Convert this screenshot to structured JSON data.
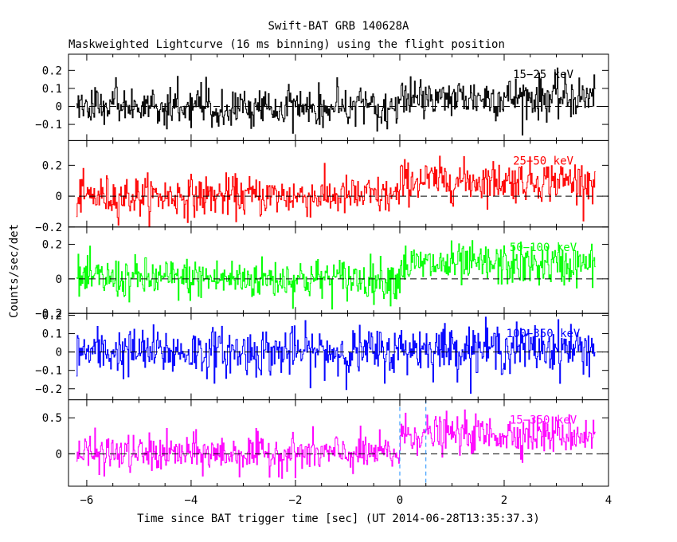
{
  "chart_data": {
    "type": "line",
    "title": "Swift-BAT GRB 140628A",
    "subtitle": "Maskweighted Lightcurve (16 ms binning) using the flight position",
    "xlabel": "Time since BAT trigger time [sec] (UT 2014-06-28T13:35:37.3)",
    "ylabel": "Counts/sec/det",
    "xlim": [
      -6.35,
      4.0
    ],
    "x_ticks": [
      -6,
      -4,
      -2,
      0,
      2,
      4
    ],
    "x_tick_labels": [
      "−6",
      "−4",
      "−2",
      "0",
      "2",
      "4"
    ],
    "data_x_range": [
      -6.2,
      3.75
    ],
    "bin_width_s": 0.016,
    "trigger_markers_x": [
      0.0,
      0.5
    ],
    "grid": false,
    "legend_placement": "inside-top-right of each panel",
    "panels": [
      {
        "name": "15-25 keV",
        "label": "15−25 keV",
        "color": "#000000",
        "ylim": [
          -0.19,
          0.29
        ],
        "y_ticks": [
          -0.1,
          0,
          0.1,
          0.2
        ],
        "y_tick_labels": [
          "−0.1",
          "0",
          "0.1",
          "0.2"
        ],
        "baseline_pre": 0.0,
        "baseline_post": 0.05,
        "noise_sd": 0.06
      },
      {
        "name": "25-50 keV",
        "label": "25−50 keV",
        "color": "#ff0000",
        "ylim": [
          -0.2,
          0.36
        ],
        "y_ticks": [
          -0.2,
          0,
          0.2
        ],
        "y_tick_labels": [
          "−0.2",
          "0",
          "0.2"
        ],
        "baseline_pre": 0.0,
        "baseline_post": 0.1,
        "noise_sd": 0.065
      },
      {
        "name": "50-100 keV",
        "label": "50−100 keV",
        "color": "#00ff00",
        "ylim": [
          -0.2,
          0.3
        ],
        "y_ticks": [
          -0.2,
          0,
          0.2
        ],
        "y_tick_labels": [
          "−0.2",
          "0",
          "0.2"
        ],
        "baseline_pre": 0.0,
        "baseline_post": 0.08,
        "noise_sd": 0.06
      },
      {
        "name": "100-350 keV",
        "label": "100−350 keV",
        "color": "#0000ff",
        "ylim": [
          -0.26,
          0.21
        ],
        "y_ticks": [
          -0.2,
          -0.1,
          0,
          0.1,
          0.2
        ],
        "y_tick_labels": [
          "−0.2",
          "−0.1",
          "0",
          "0.1",
          "0.2"
        ],
        "baseline_pre": 0.0,
        "baseline_post": 0.02,
        "noise_sd": 0.065
      },
      {
        "name": "15-350 keV",
        "label": "15−350 keV",
        "color": "#ff00ff",
        "ylim": [
          -0.45,
          0.75
        ],
        "y_ticks": [
          0,
          0.5
        ],
        "y_tick_labels": [
          "0",
          "0.5"
        ],
        "baseline_pre": 0.0,
        "baseline_post": 0.27,
        "noise_sd": 0.13
      }
    ]
  }
}
